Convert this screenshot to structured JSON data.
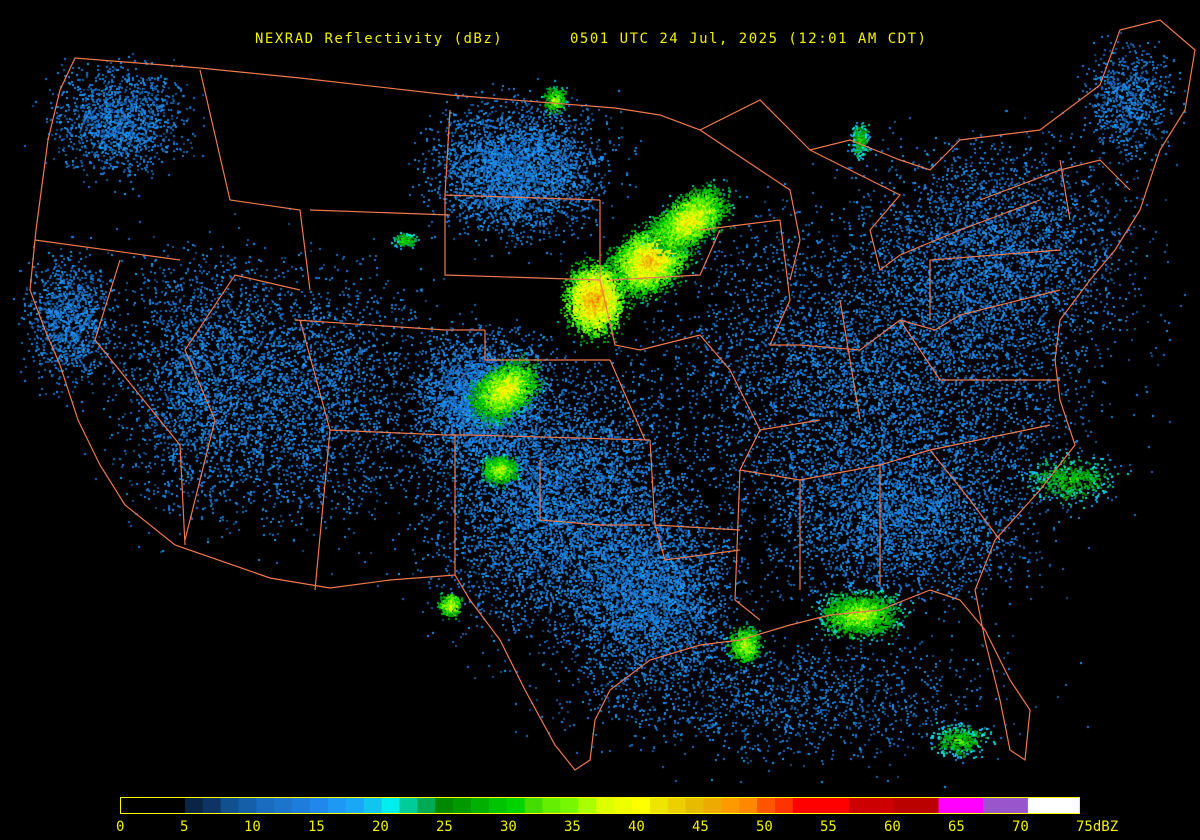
{
  "header": {
    "product": "NEXRAD Reflectivity (dBz)",
    "timestamp": "0501 UTC 24 Jul, 2025 (12:01 AM CDT)"
  },
  "map": {
    "region": "Continental United States",
    "background_color": "#000000",
    "boundary_color": "#f07850"
  },
  "legend": {
    "unit": "dBZ",
    "ticks": [
      "0",
      "5",
      "10",
      "15",
      "20",
      "25",
      "30",
      "35",
      "40",
      "45",
      "50",
      "55",
      "60",
      "65",
      "70",
      "75dBZ"
    ],
    "range": [
      0,
      75
    ],
    "outline_color": "#ffff00",
    "stops": [
      [
        0,
        5,
        "#000000"
      ],
      [
        5,
        6.4,
        "#0a2445"
      ],
      [
        6.4,
        7.8,
        "#0d3464"
      ],
      [
        7.8,
        9.2,
        "#10508f"
      ],
      [
        9.2,
        10.6,
        "#155fa8"
      ],
      [
        10.6,
        12,
        "#1a6cc0"
      ],
      [
        12,
        13.4,
        "#1c74cc"
      ],
      [
        13.4,
        14.8,
        "#1e7ddc"
      ],
      [
        14.8,
        16.2,
        "#2088ec"
      ],
      [
        16.2,
        17.6,
        "#1e98f5"
      ],
      [
        17.6,
        19,
        "#18a8f5"
      ],
      [
        19,
        20.4,
        "#12c5ee"
      ],
      [
        20.4,
        21.8,
        "#00eeee"
      ],
      [
        21.8,
        23.2,
        "#00cc99"
      ],
      [
        23.2,
        24.6,
        "#00aa55"
      ],
      [
        24.6,
        26,
        "#008800"
      ],
      [
        26,
        27.4,
        "#009900"
      ],
      [
        27.4,
        28.8,
        "#00b000"
      ],
      [
        28.8,
        30.2,
        "#00c400"
      ],
      [
        30.2,
        31.6,
        "#00d400"
      ],
      [
        31.6,
        33,
        "#44dd00"
      ],
      [
        33,
        34.4,
        "#66ee00"
      ],
      [
        34.4,
        35.8,
        "#77f800"
      ],
      [
        35.8,
        37.2,
        "#aaff00"
      ],
      [
        37.2,
        38.6,
        "#ddff00"
      ],
      [
        38.6,
        40,
        "#eeff00"
      ],
      [
        40,
        41.4,
        "#ffff00"
      ],
      [
        41.4,
        42.8,
        "#eee600"
      ],
      [
        42.8,
        44.2,
        "#eed000"
      ],
      [
        44.2,
        45.6,
        "#e6bb00"
      ],
      [
        45.6,
        47,
        "#eeaa00"
      ],
      [
        47,
        48.4,
        "#ff9900"
      ],
      [
        48.4,
        49.8,
        "#ff8800"
      ],
      [
        49.8,
        51.2,
        "#ff5500"
      ],
      [
        51.2,
        52.6,
        "#ff3300"
      ],
      [
        52.6,
        57,
        "#ff0000"
      ],
      [
        57,
        60.5,
        "#cc0000"
      ],
      [
        60.5,
        64,
        "#bb0000"
      ],
      [
        64,
        67.5,
        "#ff00ff"
      ],
      [
        67.5,
        71,
        "#9955cc"
      ],
      [
        71,
        75,
        "#ffffff"
      ]
    ]
  }
}
